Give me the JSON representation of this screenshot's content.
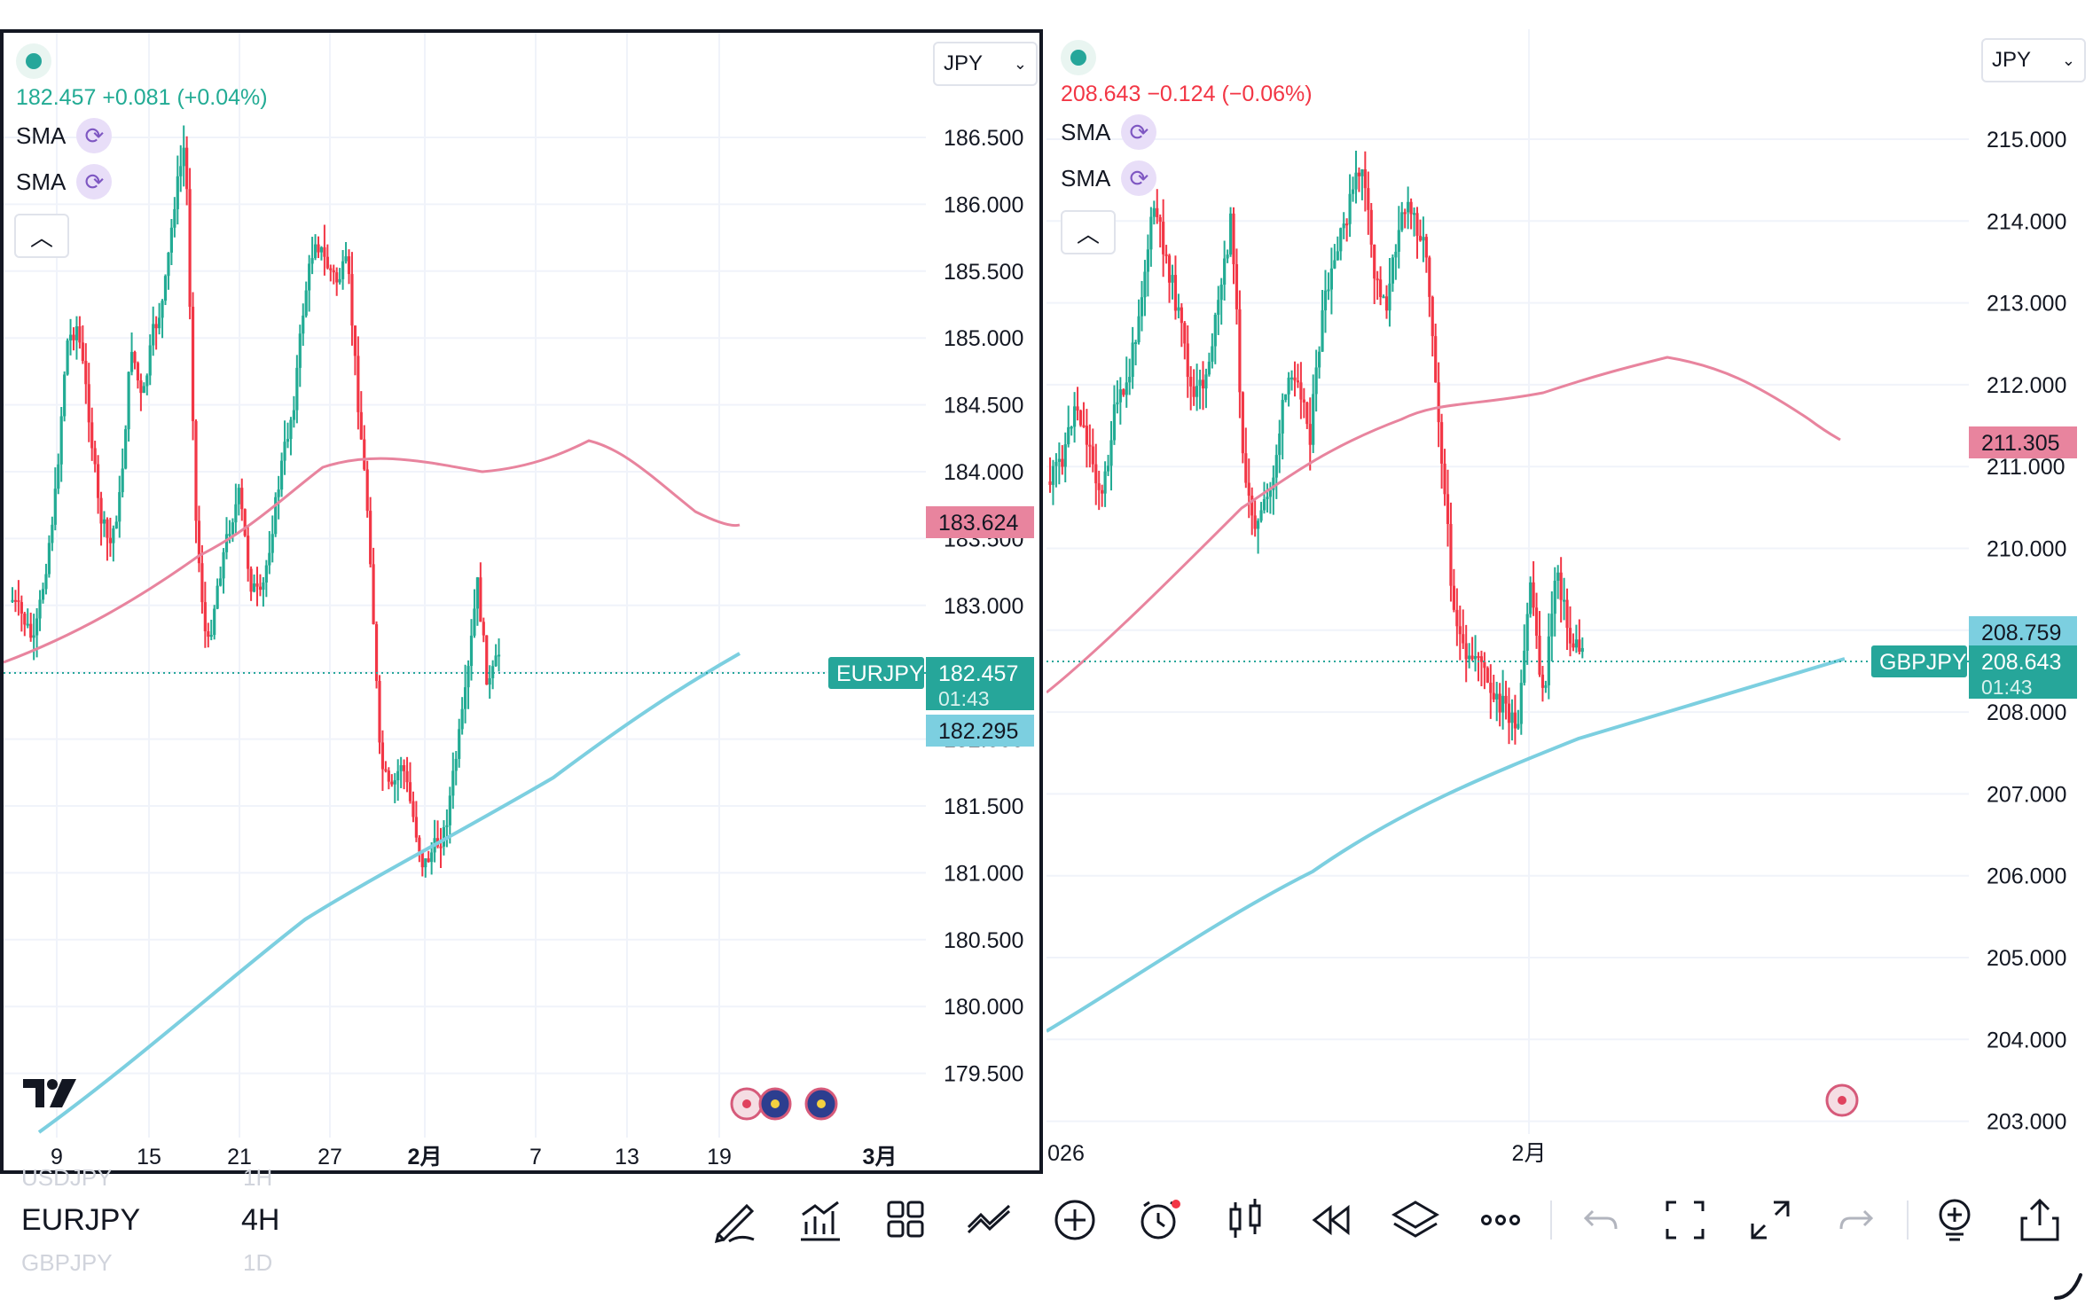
{
  "left_chart": {
    "symbol": "EURJPY",
    "currency": "JPY",
    "last_price": "182.457",
    "change": "+0.081",
    "change_pct": "(+0.04%)",
    "countdown": "01:43",
    "indicators": [
      {
        "label": "SMA",
        "value": "183.624",
        "color": "#e8849e"
      },
      {
        "label": "SMA",
        "value": "182.295",
        "color": "#7ccfe0"
      }
    ],
    "price_axis": [
      "186.500",
      "186.000",
      "185.500",
      "185.000",
      "184.500",
      "184.000",
      "183.500",
      "183.000",
      "182.500",
      "182.000",
      "181.500",
      "181.000",
      "180.500",
      "180.000",
      "179.500"
    ],
    "time_axis": [
      "9",
      "15",
      "21",
      "27",
      "2月",
      "7",
      "13",
      "19",
      "3月"
    ]
  },
  "right_chart": {
    "symbol": "GBPJPY",
    "currency": "JPY",
    "last_price": "208.643",
    "change": "−0.124",
    "change_pct": "(−0.06%)",
    "countdown": "01:43",
    "indicators": [
      {
        "label": "SMA",
        "value": "211.305",
        "color": "#e8849e"
      },
      {
        "label": "SMA",
        "value": "208.759",
        "color": "#7ccfe0"
      }
    ],
    "price_axis": [
      "215.000",
      "214.000",
      "213.000",
      "212.000",
      "211.000",
      "210.000",
      "209.000",
      "208.000",
      "207.000",
      "206.000",
      "205.000",
      "204.000",
      "203.000"
    ],
    "time_axis": [
      "026",
      "2月"
    ]
  },
  "bottom": {
    "ticker_above": "USDJPY",
    "ticker_current": "EURJPY",
    "ticker_below": "GBPJPY",
    "interval_above": "1H",
    "interval_current": "4H",
    "interval_below": "1D"
  },
  "toolbar_icons": [
    "drawing-brush-icon",
    "indicators-chart-icon",
    "layout-grid-icon",
    "strategy-icon",
    "add-plus-icon",
    "alert-clock-icon",
    "candle-type-icon",
    "replay-rewind-icon",
    "layers-icon",
    "more-dots-icon",
    "undo-icon",
    "screenshot-frame-icon",
    "fullscreen-icon",
    "redo-icon",
    "add-chart-icon",
    "share-icon"
  ],
  "colors": {
    "up": "#22ab94",
    "down": "#f23645",
    "sma_long": "#7ccfe0",
    "sma_mid": "#e8849e",
    "price_label": "#26a69a"
  }
}
